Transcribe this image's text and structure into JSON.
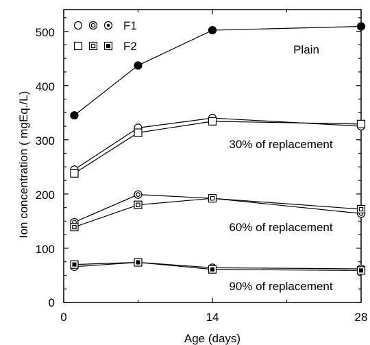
{
  "chart_data": {
    "type": "line",
    "xlabel": "Age (days)",
    "ylabel": "Ion concentration ( mgEq./L)",
    "xlim": [
      0,
      28
    ],
    "ylim": [
      0,
      540
    ],
    "xticks": [
      0,
      14,
      28
    ],
    "yticks": [
      0,
      100,
      200,
      300,
      400,
      500
    ],
    "legend": {
      "placement": "top-left",
      "entries": [
        {
          "label": "F1",
          "marker_family": "circle"
        },
        {
          "label": "F2",
          "marker_family": "square"
        }
      ]
    },
    "annotations": [
      {
        "text": "Plain",
        "near": "Plain"
      },
      {
        "text": "30% of replacement",
        "near": "30%"
      },
      {
        "text": "60% of replacement",
        "near": "60%"
      },
      {
        "text": "90% of replacement",
        "near": "90%"
      }
    ],
    "series": [
      {
        "group": "Plain",
        "formulation": "F1",
        "marker": "filled-circle",
        "x": [
          1,
          7,
          14,
          28
        ],
        "y": [
          345,
          437,
          502,
          509
        ]
      },
      {
        "group": "30%",
        "formulation": "F1",
        "marker": "open-circle",
        "x": [
          1,
          7,
          14,
          28
        ],
        "y": [
          245,
          322,
          340,
          325
        ]
      },
      {
        "group": "30%",
        "formulation": "F2",
        "marker": "open-square",
        "x": [
          1,
          7,
          14,
          28
        ],
        "y": [
          238,
          313,
          334,
          329
        ]
      },
      {
        "group": "60%",
        "formulation": "F1",
        "marker": "double-circle",
        "x": [
          1,
          7,
          14,
          28
        ],
        "y": [
          148,
          199,
          192,
          164
        ]
      },
      {
        "group": "60%",
        "formulation": "F2",
        "marker": "double-square",
        "x": [
          1,
          7,
          14,
          28
        ],
        "y": [
          139,
          180,
          192,
          172
        ]
      },
      {
        "group": "90%",
        "formulation": "F1",
        "marker": "dot-circle",
        "x": [
          1,
          7,
          14,
          28
        ],
        "y": [
          66,
          74,
          64,
          62
        ]
      },
      {
        "group": "90%",
        "formulation": "F2",
        "marker": "filled-square",
        "x": [
          1,
          7,
          14,
          28
        ],
        "y": [
          70,
          74,
          61,
          59
        ]
      }
    ]
  }
}
